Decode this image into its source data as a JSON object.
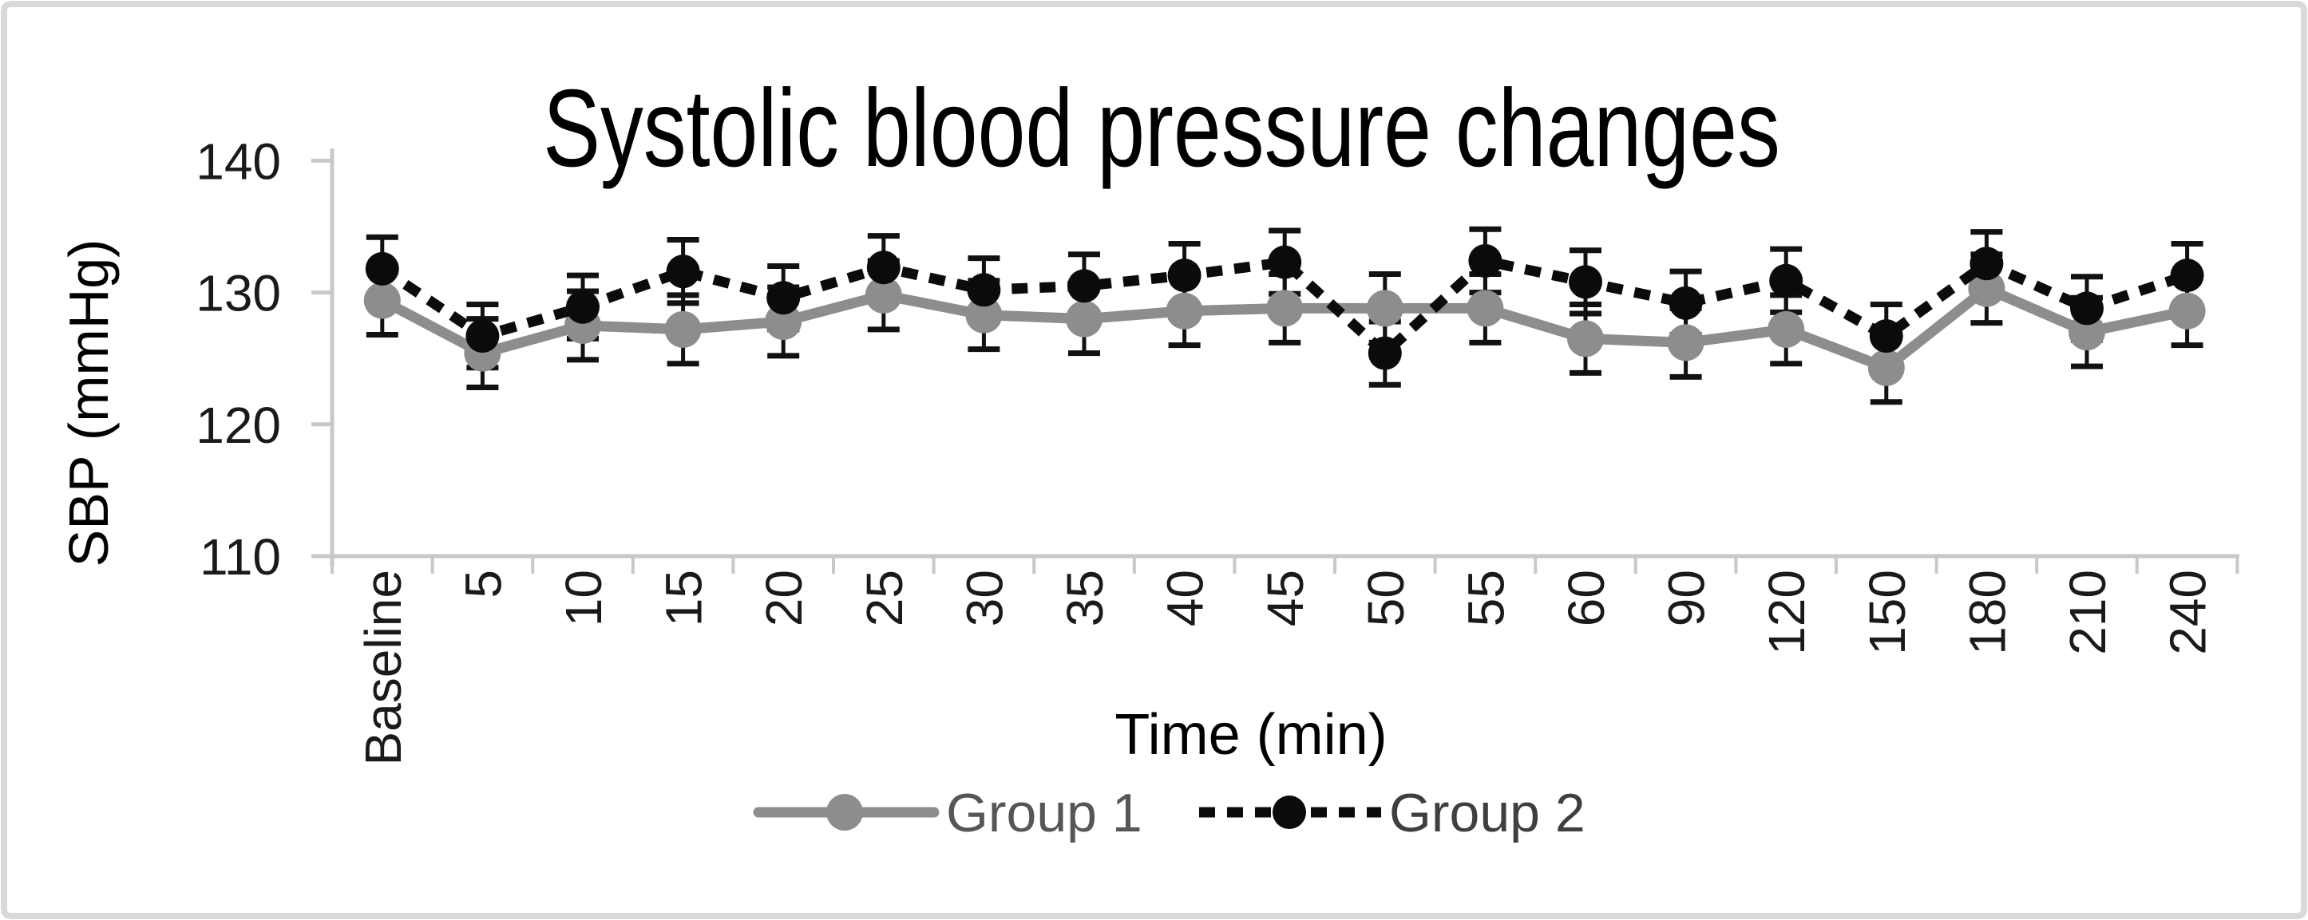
{
  "page": {
    "background": "#ffffff",
    "border_color": "#d9d9d9"
  },
  "chart_data": {
    "type": "line",
    "title": "Systolic blood pressure changes",
    "xlabel": "Time (min)",
    "ylabel": "SBP (mmHg)",
    "categories": [
      "Baseline",
      "5",
      "10",
      "15",
      "20",
      "25",
      "30",
      "35",
      "40",
      "45",
      "50",
      "55",
      "60",
      "90",
      "120",
      "150",
      "180",
      "210",
      "240"
    ],
    "y_ticks": [
      110,
      120,
      130,
      140
    ],
    "ylim": [
      110,
      140
    ],
    "grid": false,
    "legend_position": "bottom-center",
    "axis_color": "#c8c8c8",
    "error_bar_color": "#111111",
    "series": [
      {
        "name": "Group 1",
        "color": "#8d8d8d",
        "label_color": "#565656",
        "line_style": "solid",
        "marker": "circle",
        "values": [
          129.4,
          125.4,
          127.5,
          127.2,
          127.8,
          129.8,
          128.3,
          128.0,
          128.6,
          128.8,
          128.8,
          128.8,
          126.5,
          126.2,
          127.2,
          124.3,
          130.3,
          127.0,
          128.6
        ],
        "error_bar": 2.6
      },
      {
        "name": "Group 2",
        "color": "#0b0b0b",
        "label_color": "#3f3f3f",
        "line_style": "dotted",
        "marker": "circle",
        "values": [
          131.8,
          126.7,
          128.9,
          131.6,
          129.6,
          131.9,
          130.2,
          130.5,
          131.3,
          132.3,
          125.4,
          132.4,
          130.8,
          129.2,
          130.9,
          126.7,
          132.2,
          128.8,
          131.3
        ],
        "error_bar": 2.4
      }
    ]
  }
}
